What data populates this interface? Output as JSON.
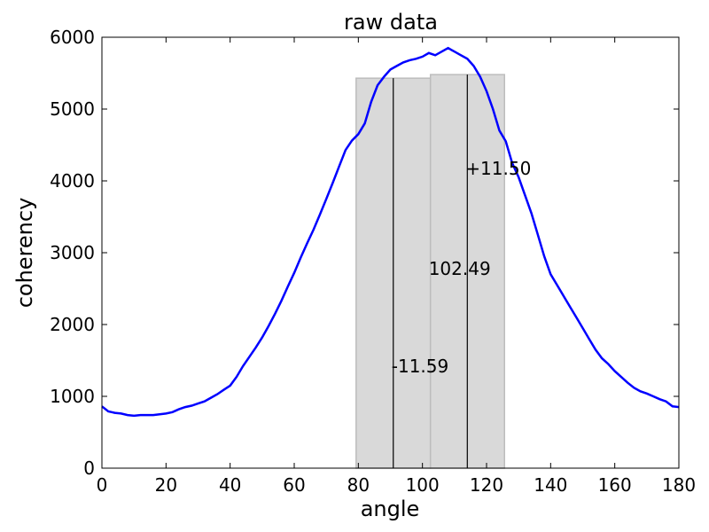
{
  "chart_data": {
    "type": "line",
    "title": "raw data",
    "xlabel": "angle",
    "ylabel": "coherency",
    "xlim": [
      0,
      180
    ],
    "ylim": [
      0,
      6000
    ],
    "xticks": [
      0,
      20,
      40,
      60,
      80,
      100,
      120,
      140,
      160,
      180
    ],
    "yticks": [
      0,
      1000,
      2000,
      3000,
      4000,
      5000,
      6000
    ],
    "grid": false,
    "line_color": "#0000ff",
    "shade_color": "#d9d9d9",
    "shaded_regions": [
      {
        "x0": 79.3,
        "x1": 102.5,
        "y": 5430
      },
      {
        "x0": 102.5,
        "x1": 125.6,
        "y": 5480
      }
    ],
    "vlines": [
      {
        "x": 90.9,
        "y": 5430
      },
      {
        "x": 114.0,
        "y": 5480
      }
    ],
    "annotations": [
      {
        "text": "+11.50",
        "x": 114.0,
        "y": 4170
      },
      {
        "text": "102.49",
        "x": 102.5,
        "y": 2780
      },
      {
        "text": "-11.59",
        "x": 90.9,
        "y": 1420
      }
    ],
    "series": [
      {
        "x": [
          0,
          2,
          4,
          6,
          8,
          10,
          12,
          14,
          16,
          18,
          20,
          22,
          24,
          26,
          28,
          30,
          32,
          34,
          36,
          38,
          40,
          42,
          44,
          46,
          48,
          50,
          52,
          54,
          56,
          58,
          60,
          62,
          64,
          66,
          68,
          70,
          72,
          74,
          76,
          78,
          80,
          82,
          84,
          86,
          88,
          90,
          92,
          94,
          96,
          98,
          100,
          102,
          104,
          106,
          108,
          110,
          112,
          114,
          116,
          118,
          120,
          122,
          124,
          126,
          128,
          130,
          132,
          134,
          136,
          138,
          140,
          142,
          144,
          146,
          148,
          150,
          152,
          154,
          156,
          158,
          160,
          162,
          164,
          166,
          168,
          170,
          172,
          174,
          176,
          178,
          180
        ],
        "y": [
          860,
          790,
          770,
          760,
          740,
          730,
          740,
          740,
          740,
          750,
          760,
          780,
          820,
          850,
          870,
          900,
          930,
          980,
          1030,
          1090,
          1150,
          1270,
          1420,
          1550,
          1680,
          1820,
          1980,
          2150,
          2330,
          2530,
          2720,
          2930,
          3130,
          3320,
          3530,
          3750,
          3970,
          4200,
          4430,
          4560,
          4650,
          4800,
          5100,
          5330,
          5450,
          5550,
          5600,
          5650,
          5680,
          5700,
          5730,
          5780,
          5750,
          5800,
          5850,
          5800,
          5750,
          5700,
          5600,
          5450,
          5250,
          5000,
          4700,
          4550,
          4250,
          4050,
          3800,
          3550,
          3250,
          2950,
          2700,
          2550,
          2400,
          2250,
          2100,
          1950,
          1800,
          1650,
          1530,
          1450,
          1350,
          1270,
          1190,
          1120,
          1070,
          1040,
          1000,
          960,
          930,
          860,
          850
        ]
      }
    ]
  }
}
